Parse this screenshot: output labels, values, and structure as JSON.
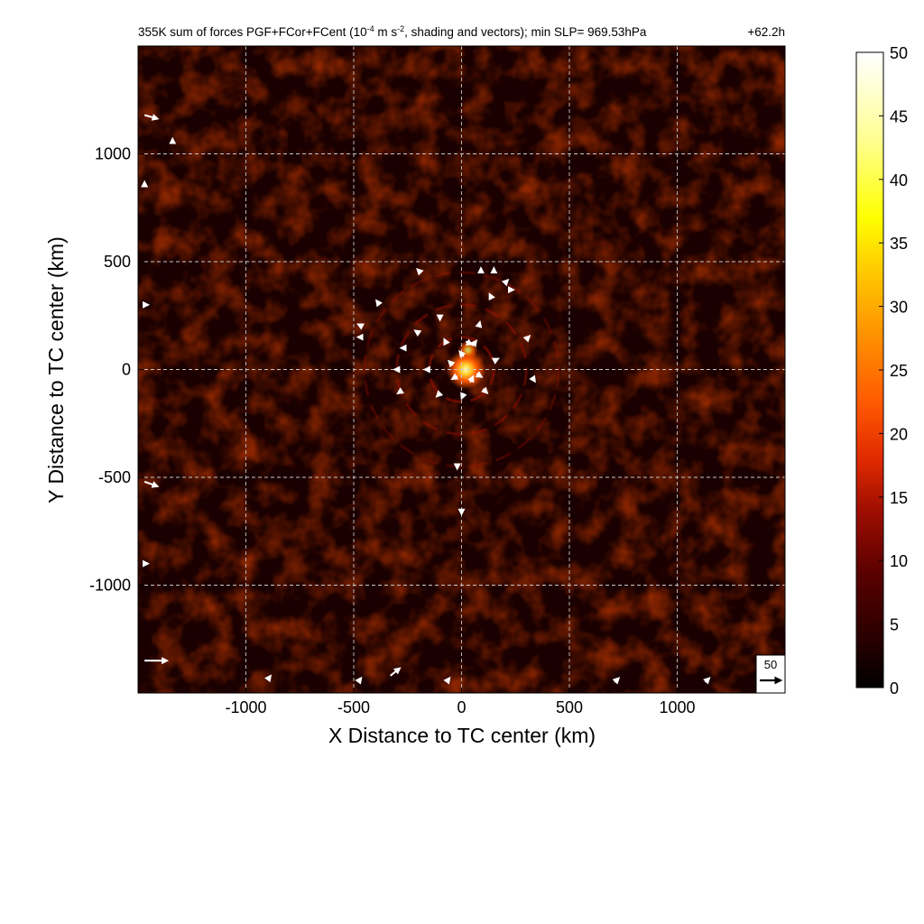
{
  "chart_data": {
    "type": "heatmap",
    "title": "355K sum of forces PGF+FCor+FCent (10",
    "title_sup": "-4",
    "title_mid": " m s",
    "title_sup2": "-2",
    "title_end": ", shading and vectors); min SLP= 969.53hPa",
    "time_label": "+62.2h",
    "xlabel": "X Distance to TC center (km)",
    "ylabel": "Y Distance to TC center (km)",
    "xlim": [
      -1500,
      1500
    ],
    "ylim": [
      -1500,
      1500
    ],
    "xticks": [
      -1000,
      -500,
      0,
      500,
      1000
    ],
    "yticks": [
      -1000,
      -500,
      0,
      500,
      1000
    ],
    "grid": true,
    "colorbar": {
      "min": 0,
      "max": 50,
      "ticks": [
        0,
        5,
        10,
        15,
        20,
        25,
        30,
        35,
        40,
        45,
        50
      ],
      "colors": [
        "#000000",
        "#2a0000",
        "#5a0000",
        "#8a0a00",
        "#bb1a00",
        "#e03000",
        "#ff5a00",
        "#ff9000",
        "#ffc400",
        "#ffef20",
        "#ffffb0",
        "#ffffff"
      ]
    },
    "reference_vector": {
      "label": "50",
      "magnitude": 50
    },
    "features": {
      "eyewall_peak": {
        "x": 20,
        "y": 0,
        "value": 40
      },
      "rings_km": [
        150,
        300,
        450
      ],
      "background_value": 5
    },
    "vectors": [
      {
        "x": 20,
        "y": 130,
        "u": 12,
        "v": -6
      },
      {
        "x": 50,
        "y": 110,
        "u": 8,
        "v": 10
      },
      {
        "x": 10,
        "y": 60,
        "u": -8,
        "v": 10
      },
      {
        "x": -20,
        "y": -30,
        "u": -10,
        "v": -6
      },
      {
        "x": 40,
        "y": -60,
        "u": 6,
        "v": 12
      },
      {
        "x": 70,
        "y": -20,
        "u": 10,
        "v": -6
      },
      {
        "x": -40,
        "y": 20,
        "u": -8,
        "v": 8
      },
      {
        "x": 10,
        "y": -110,
        "u": -4,
        "v": -10
      },
      {
        "x": 100,
        "y": -90,
        "u": 8,
        "v": -8
      },
      {
        "x": -100,
        "y": -110,
        "u": -6,
        "v": -6
      },
      {
        "x": -150,
        "y": 0,
        "u": -8,
        "v": 0
      },
      {
        "x": 150,
        "y": 40,
        "u": 8,
        "v": 4
      },
      {
        "x": -70,
        "y": 120,
        "u": -4,
        "v": 8
      },
      {
        "x": 80,
        "y": 200,
        "u": 2,
        "v": 8
      },
      {
        "x": -100,
        "y": 250,
        "u": 0,
        "v": -8
      },
      {
        "x": -200,
        "y": 170,
        "u": -6,
        "v": 4
      },
      {
        "x": -260,
        "y": 100,
        "u": -8,
        "v": 0
      },
      {
        "x": -290,
        "y": 0,
        "u": -8,
        "v": 0
      },
      {
        "x": -280,
        "y": -100,
        "u": -6,
        "v": -4
      },
      {
        "x": -20,
        "y": -440,
        "u": 0,
        "v": -8
      },
      {
        "x": 0,
        "y": -650,
        "u": 0,
        "v": -8
      },
      {
        "x": 90,
        "y": 450,
        "u": 0,
        "v": 8
      },
      {
        "x": 150,
        "y": 450,
        "u": 0,
        "v": 8
      },
      {
        "x": 200,
        "y": 400,
        "u": 6,
        "v": 6
      },
      {
        "x": 220,
        "y": 370,
        "u": 8,
        "v": 0
      },
      {
        "x": 140,
        "y": 330,
        "u": -4,
        "v": 8
      },
      {
        "x": -190,
        "y": 450,
        "u": -6,
        "v": 6
      },
      {
        "x": -380,
        "y": 300,
        "u": -6,
        "v": 8
      },
      {
        "x": -460,
        "y": 200,
        "u": -8,
        "v": 4
      },
      {
        "x": -460,
        "y": 150,
        "u": -8,
        "v": 0
      },
      {
        "x": 300,
        "y": 140,
        "u": 6,
        "v": 6
      },
      {
        "x": 330,
        "y": -40,
        "u": 4,
        "v": -6
      },
      {
        "x": -1470,
        "y": 1180,
        "u": 28,
        "v": -8
      },
      {
        "x": -1470,
        "y": -520,
        "u": 28,
        "v": -10
      },
      {
        "x": -1470,
        "y": -1350,
        "u": 50,
        "v": 0
      },
      {
        "x": -330,
        "y": -1420,
        "u": 20,
        "v": 16
      },
      {
        "x": -1340,
        "y": 1050,
        "u": 0,
        "v": 8
      },
      {
        "x": 710,
        "y": -1450,
        "u": 8,
        "v": 8
      },
      {
        "x": 1130,
        "y": -1450,
        "u": 8,
        "v": 8
      },
      {
        "x": -900,
        "y": -1440,
        "u": 6,
        "v": 8
      },
      {
        "x": -480,
        "y": -1450,
        "u": 6,
        "v": 8
      },
      {
        "x": -1470,
        "y": 850,
        "u": 0,
        "v": 8
      },
      {
        "x": -1470,
        "y": 300,
        "u": 6,
        "v": 0
      },
      {
        "x": -1470,
        "y": -900,
        "u": 6,
        "v": 0
      },
      {
        "x": -70,
        "y": -1450,
        "u": 6,
        "v": 8
      }
    ]
  }
}
